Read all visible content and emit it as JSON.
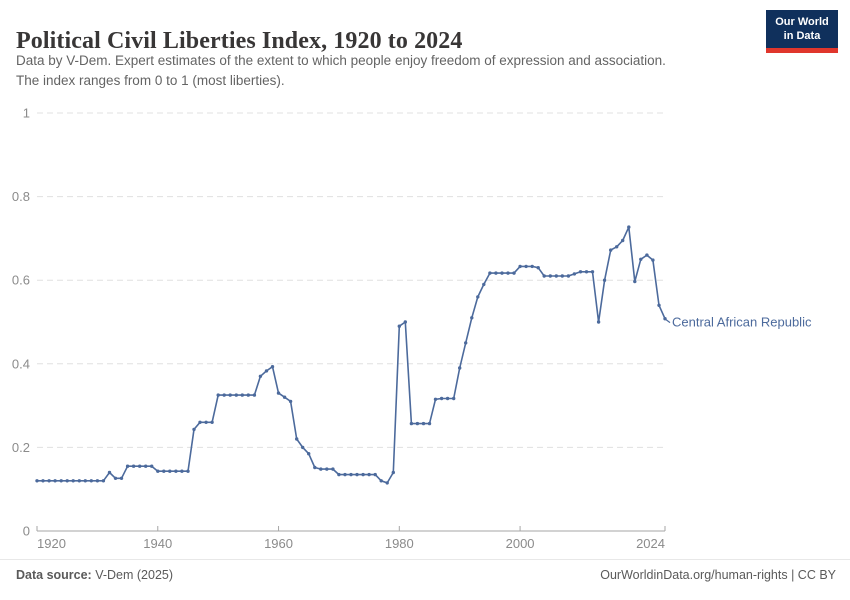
{
  "header": {
    "title": "Political Civil Liberties Index, 1920 to 2024",
    "subtitle_line1": "Data by V-Dem. Expert estimates of the extent to which people enjoy freedom of expression and association.",
    "subtitle_line2": "The index ranges from 0 to 1 (most liberties).",
    "logo": {
      "line1": "Our World",
      "line2": "in Data",
      "bg_color": "#10305c",
      "accent_color": "#e0362c"
    }
  },
  "chart_data": {
    "type": "line",
    "title": "Political Civil Liberties Index, 1920 to 2024",
    "xlabel": "",
    "ylabel": "",
    "xlim": [
      1920,
      2024
    ],
    "ylim": [
      0,
      1
    ],
    "x_ticks": [
      1920,
      1940,
      1960,
      1980,
      2000,
      2024
    ],
    "y_ticks": [
      0,
      0.2,
      0.4,
      0.6,
      0.8,
      1
    ],
    "y_tick_labels": [
      "0",
      "0.2",
      "0.4",
      "0.6",
      "0.8",
      "1"
    ],
    "grid": "horizontal-dashed",
    "legend_position": "end-of-line-label",
    "series": [
      {
        "name": "Central African Republic",
        "color": "#4c6a9c",
        "x_start_year": 1920,
        "x_step": 1,
        "years": [
          1920,
          1921,
          1922,
          1923,
          1924,
          1925,
          1926,
          1927,
          1928,
          1929,
          1930,
          1931,
          1932,
          1933,
          1934,
          1935,
          1936,
          1937,
          1938,
          1939,
          1940,
          1941,
          1942,
          1943,
          1944,
          1945,
          1946,
          1947,
          1948,
          1949,
          1950,
          1951,
          1952,
          1953,
          1954,
          1955,
          1956,
          1957,
          1958,
          1959,
          1960,
          1961,
          1962,
          1963,
          1964,
          1965,
          1966,
          1967,
          1968,
          1969,
          1970,
          1971,
          1972,
          1973,
          1974,
          1975,
          1976,
          1977,
          1978,
          1979,
          1980,
          1981,
          1982,
          1983,
          1984,
          1985,
          1986,
          1987,
          1988,
          1989,
          1990,
          1991,
          1992,
          1993,
          1994,
          1995,
          1996,
          1997,
          1998,
          1999,
          2000,
          2001,
          2002,
          2003,
          2004,
          2005,
          2006,
          2007,
          2008,
          2009,
          2010,
          2011,
          2012,
          2013,
          2014,
          2015,
          2016,
          2017,
          2018,
          2019,
          2020,
          2021,
          2022,
          2023,
          2024
        ],
        "values": [
          0.12,
          0.12,
          0.12,
          0.12,
          0.12,
          0.12,
          0.12,
          0.12,
          0.12,
          0.12,
          0.12,
          0.12,
          0.14,
          0.126,
          0.126,
          0.155,
          0.155,
          0.155,
          0.155,
          0.155,
          0.143,
          0.143,
          0.143,
          0.143,
          0.143,
          0.143,
          0.243,
          0.26,
          0.26,
          0.26,
          0.325,
          0.325,
          0.325,
          0.325,
          0.325,
          0.325,
          0.325,
          0.37,
          0.383,
          0.393,
          0.33,
          0.32,
          0.31,
          0.22,
          0.2,
          0.185,
          0.152,
          0.148,
          0.148,
          0.148,
          0.135,
          0.135,
          0.135,
          0.135,
          0.135,
          0.135,
          0.135,
          0.12,
          0.115,
          0.14,
          0.49,
          0.5,
          0.257,
          0.257,
          0.257,
          0.257,
          0.315,
          0.317,
          0.317,
          0.317,
          0.39,
          0.45,
          0.51,
          0.56,
          0.59,
          0.617,
          0.617,
          0.617,
          0.617,
          0.617,
          0.633,
          0.633,
          0.633,
          0.63,
          0.61,
          0.61,
          0.61,
          0.61,
          0.61,
          0.615,
          0.62,
          0.62,
          0.62,
          0.5,
          0.6,
          0.672,
          0.68,
          0.695,
          0.727,
          0.597,
          0.65,
          0.66,
          0.648,
          0.54,
          0.508
        ]
      }
    ]
  },
  "footer": {
    "source_label": "Data source:",
    "source_value": " V-Dem (2025)",
    "credit": "OurWorldinData.org/human-rights | CC BY"
  }
}
